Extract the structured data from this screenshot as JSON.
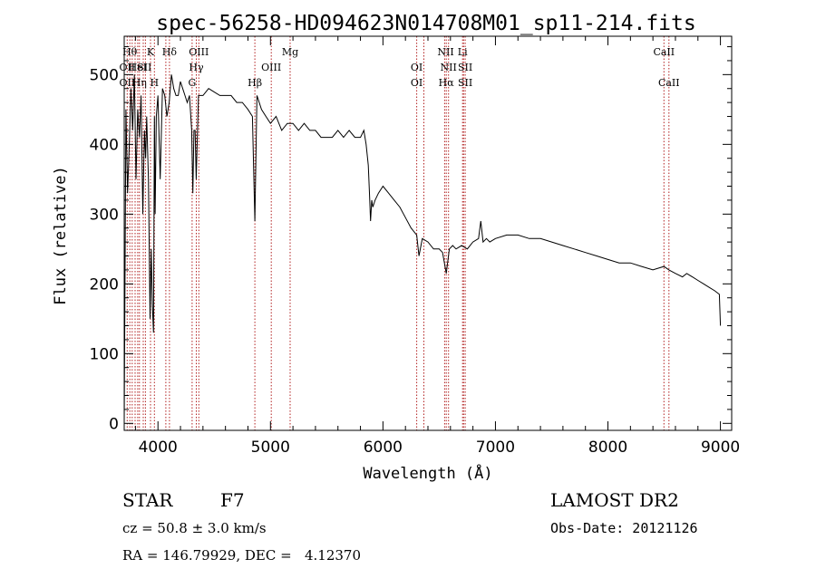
{
  "chart_data": {
    "type": "line",
    "title": "spec-56258-HD094623N014708M01_sp11-214.fits",
    "xlabel": "Wavelength (Å)",
    "ylabel": "Flux (relative)",
    "xlim": [
      3700,
      9100
    ],
    "ylim": [
      -10,
      555
    ],
    "xticks": [
      4000,
      5000,
      6000,
      7000,
      8000,
      9000
    ],
    "yticks": [
      0,
      100,
      200,
      300,
      400,
      500
    ],
    "grid": false,
    "series": [
      {
        "x": [
          3700,
          3715,
          3730,
          3745,
          3760,
          3775,
          3790,
          3805,
          3820,
          3835,
          3850,
          3865,
          3880,
          3890,
          3900,
          3915,
          3930,
          3940,
          3950,
          3960,
          3968,
          3975,
          3985,
          4000,
          4020,
          4040,
          4060,
          4080,
          4100,
          4120,
          4140,
          4160,
          4180,
          4200,
          4220,
          4240,
          4260,
          4280,
          4300,
          4310,
          4320,
          4330,
          4340,
          4360,
          4380,
          4400,
          4450,
          4500,
          4550,
          4600,
          4650,
          4700,
          4750,
          4800,
          4840,
          4861,
          4880,
          4920,
          4960,
          5000,
          5050,
          5100,
          5150,
          5200,
          5250,
          5300,
          5350,
          5400,
          5450,
          5500,
          5550,
          5600,
          5650,
          5700,
          5750,
          5800,
          5830,
          5850,
          5870,
          5880,
          5890,
          5900,
          5910,
          5930,
          5960,
          6000,
          6050,
          6100,
          6150,
          6200,
          6250,
          6300,
          6320,
          6350,
          6400,
          6450,
          6500,
          6530,
          6563,
          6590,
          6620,
          6650,
          6700,
          6750,
          6800,
          6850,
          6870,
          6890,
          6920,
          6950,
          7000,
          7100,
          7200,
          7300,
          7400,
          7500,
          7600,
          7700,
          7800,
          7900,
          8000,
          8100,
          8200,
          8300,
          8400,
          8498,
          8542,
          8600,
          8662,
          8700,
          8750,
          8800,
          8850,
          8900,
          8950,
          8990,
          9000
        ],
        "values": [
          0,
          450,
          330,
          400,
          480,
          420,
          500,
          350,
          450,
          410,
          470,
          300,
          420,
          380,
          440,
          350,
          150,
          250,
          170,
          130,
          440,
          300,
          440,
          470,
          350,
          480,
          470,
          440,
          460,
          500,
          480,
          470,
          470,
          490,
          480,
          470,
          460,
          470,
          420,
          330,
          420,
          420,
          350,
          470,
          470,
          470,
          480,
          475,
          470,
          470,
          470,
          460,
          460,
          450,
          440,
          290,
          470,
          450,
          440,
          430,
          440,
          420,
          430,
          430,
          420,
          430,
          420,
          420,
          410,
          410,
          410,
          420,
          410,
          420,
          410,
          410,
          420,
          400,
          370,
          330,
          290,
          320,
          310,
          320,
          330,
          340,
          330,
          320,
          310,
          295,
          280,
          270,
          240,
          265,
          260,
          250,
          250,
          245,
          215,
          250,
          255,
          250,
          255,
          250,
          260,
          265,
          290,
          260,
          265,
          260,
          265,
          270,
          270,
          265,
          265,
          260,
          255,
          250,
          245,
          240,
          235,
          230,
          230,
          225,
          220,
          225,
          220,
          215,
          210,
          215,
          210,
          205,
          200,
          195,
          190,
          185,
          140
        ]
      }
    ],
    "annotations": {
      "row1": [
        "Hθ",
        "K",
        "Hδ",
        "OIII",
        "Mg",
        "NII",
        "Li",
        "CaII"
      ],
      "row2": [
        "OII",
        "HeI",
        "SII",
        "Hγ",
        "OIII",
        "OI",
        "NII",
        "SII"
      ],
      "row3": [
        "OII",
        "Hη",
        "H",
        "G",
        "Hβ",
        "OI",
        "Hα",
        "SII",
        "CaII"
      ]
    },
    "line_markers": [
      3727,
      3750,
      3771,
      3797,
      3820,
      3835,
      3869,
      3889,
      3934,
      3968,
      4070,
      4102,
      4304,
      4341,
      4363,
      4861,
      5007,
      5175,
      6300,
      6364,
      6548,
      6563,
      6583,
      6708,
      6717,
      6731,
      8498,
      8542
    ]
  },
  "info": {
    "object_type": "STAR",
    "subclass": "F7",
    "survey": "LAMOST DR2",
    "cz": "cz = 50.8 ± 3.0 km/s",
    "obs_date": "Obs-Date: 20121126",
    "coords": "RA = 146.79929, DEC =   4.12370"
  }
}
